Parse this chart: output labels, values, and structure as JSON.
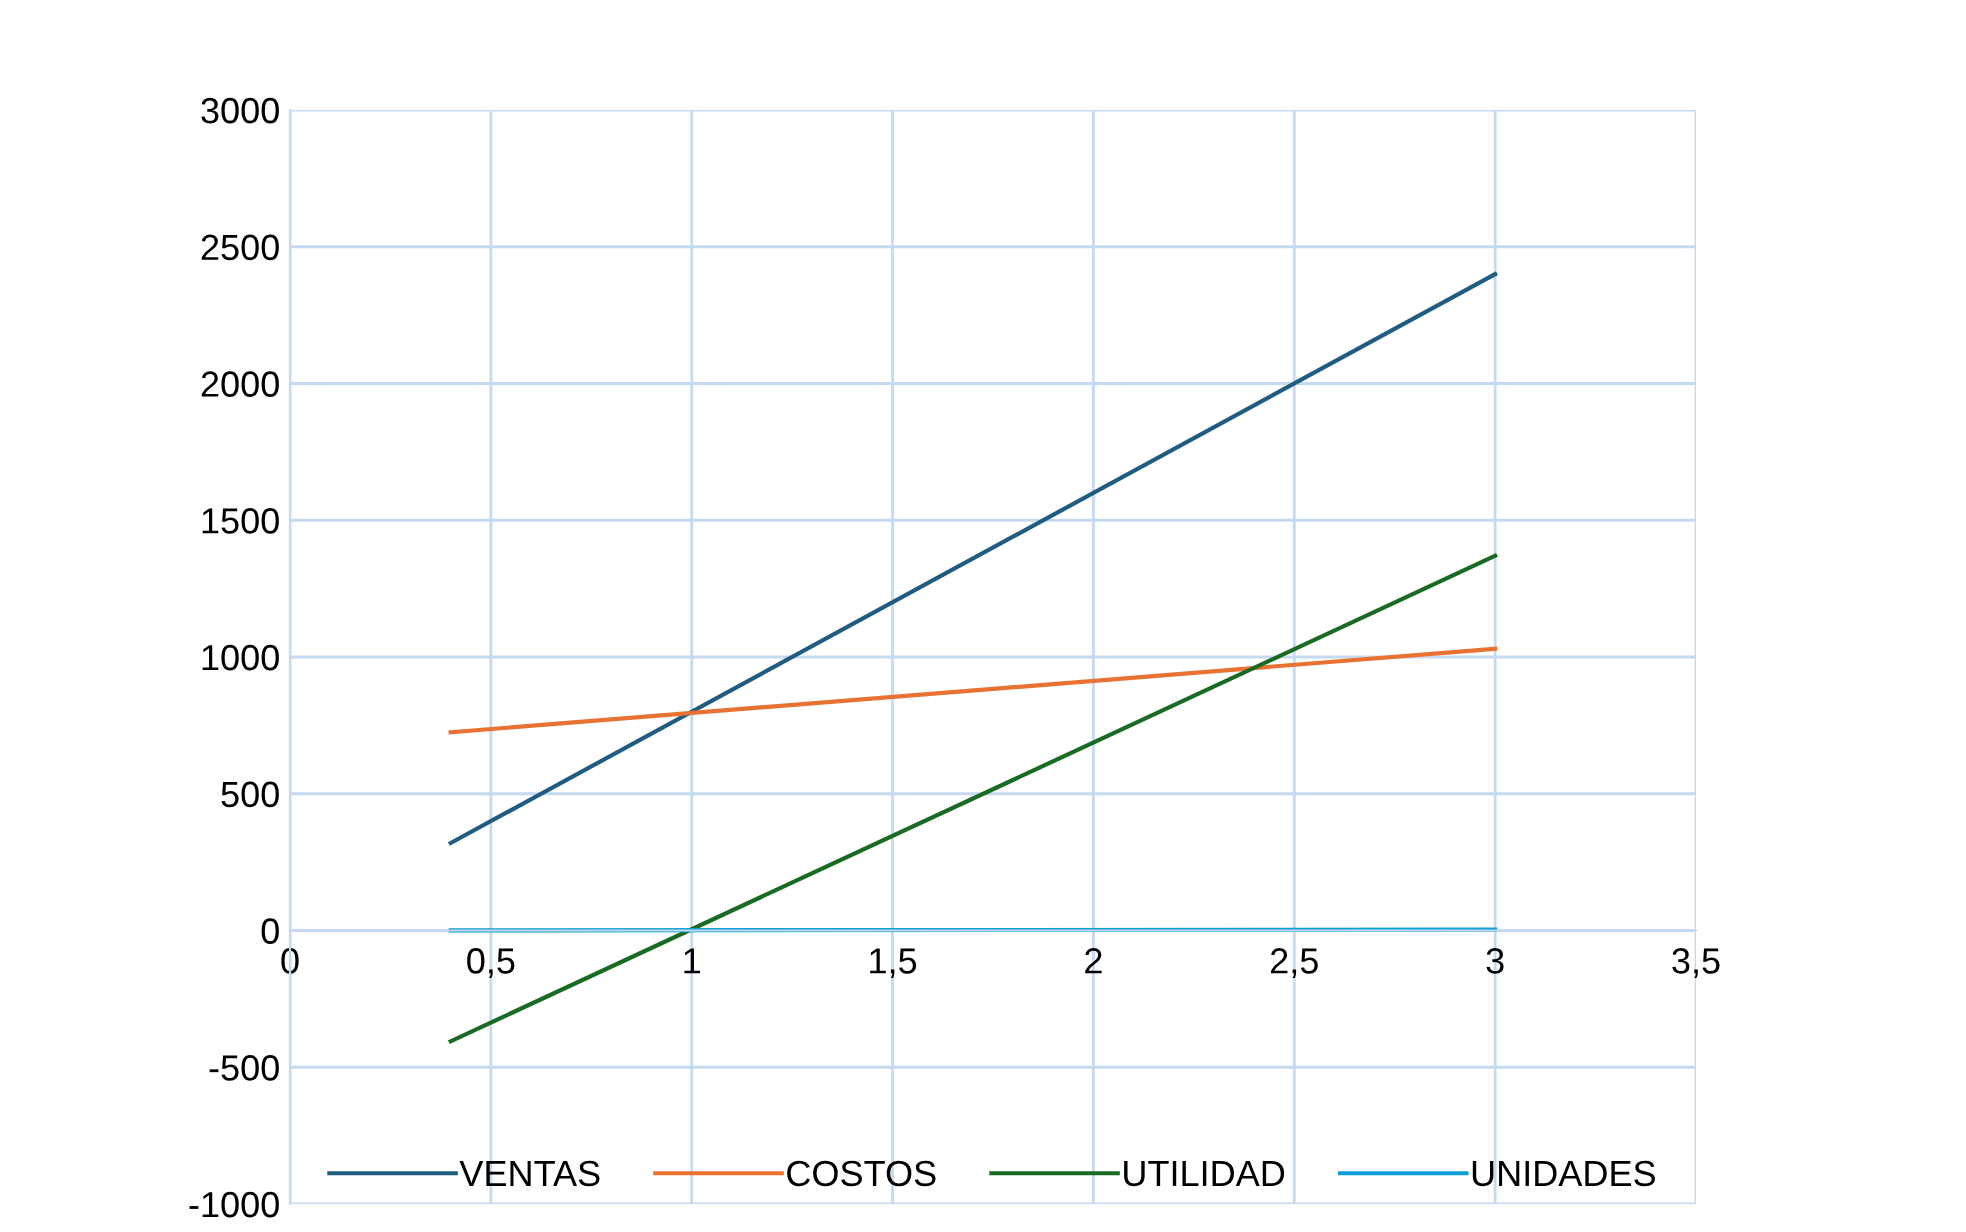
{
  "chart_data": {
    "type": "line",
    "x": [
      0.4,
      3
    ],
    "series": [
      {
        "name": "VENTAS",
        "color": "#1f5c80",
        "values": [
          320,
          2400
        ]
      },
      {
        "name": "COSTOS",
        "color": "#e97132",
        "values": [
          725,
          1030
        ]
      },
      {
        "name": "UTILIDAD",
        "color": "#196b24",
        "values": [
          -405,
          1370
        ]
      },
      {
        "name": "UNIDADES",
        "color": "#0f9ed5",
        "values": [
          0.4,
          3
        ]
      }
    ],
    "xlim": [
      0,
      3.5
    ],
    "ylim": [
      -1000,
      3000
    ],
    "xticks": [
      0,
      {
        "value": 0.5,
        "label": "0,5"
      },
      1,
      {
        "value": 1.5,
        "label": "1,5"
      },
      2,
      {
        "value": 2.5,
        "label": "2,5"
      },
      3,
      {
        "value": 3.5,
        "label": "3,5"
      }
    ],
    "yticks": [
      -1000,
      -500,
      0,
      500,
      1000,
      1500,
      2000,
      2500,
      3000
    ],
    "grid": true,
    "legend": "bottom",
    "marker": "none",
    "line_style": "solid"
  }
}
